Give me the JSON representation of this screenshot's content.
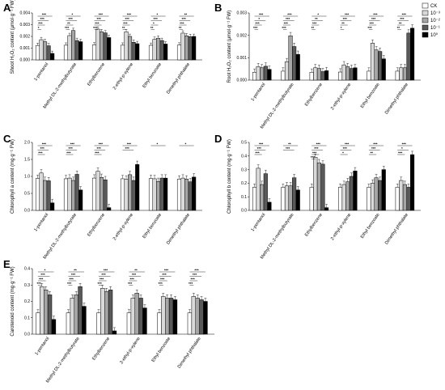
{
  "chart_data": [
    {
      "panel": "A",
      "type": "bar",
      "ylabel": "Shoot H₂O₂ content (μmol·g⁻¹ FW)",
      "ylim": [
        0,
        0.004
      ],
      "yticks": [
        "0.000",
        "0.001",
        "0.002",
        "0.003",
        "0.004"
      ],
      "categories": [
        "1-pentanol",
        "Methyl DL-2-methylbutyrate",
        "Ethylbenzene",
        "2-ethyl-p-xylene",
        "Ethyl benzoate",
        "Dimethyl phthalate"
      ],
      "series": [
        {
          "name": "CK",
          "values": [
            0.00123,
            0.00125,
            0.00128,
            0.00125,
            0.00124,
            0.00126
          ]
        },
        {
          "name": "10⁻³",
          "values": [
            0.00172,
            0.00207,
            0.00262,
            0.0024,
            0.00175,
            0.00228
          ]
        },
        {
          "name": "10⁻²",
          "values": [
            0.00155,
            0.0025,
            0.0024,
            0.002,
            0.00185,
            0.00205
          ]
        },
        {
          "name": "10⁻¹",
          "values": [
            0.0012,
            0.00165,
            0.0023,
            0.0015,
            0.00165,
            0.00198
          ]
        },
        {
          "name": "10⁰",
          "values": [
            0.00055,
            0.00155,
            0.0019,
            0.00138,
            0.00135,
            0.002
          ]
        }
      ],
      "significance": [
        [
          "***",
          "***",
          "***",
          "*"
        ],
        [
          "*",
          "***",
          "**",
          "***"
        ],
        [
          "***",
          "***",
          "***",
          "***"
        ],
        [
          "***",
          "***",
          "***",
          "**"
        ],
        [
          "*",
          "***",
          "*",
          "**"
        ],
        [
          "**",
          "***",
          "***",
          "**"
        ]
      ]
    },
    {
      "panel": "B",
      "type": "bar",
      "ylabel": "Root H₂O₂ content (μmol·g⁻¹ FW)",
      "ylim": [
        0,
        0.003
      ],
      "yticks": [
        "0.000",
        "0.001",
        "0.002",
        "0.003"
      ],
      "categories": [
        "1-pentanol",
        "Methyl DL-2-methylbutyrate",
        "Ethylbenzene",
        "2-ethyl-p-xylene",
        "Ethyl benzoate",
        "Dimethyl phthalate"
      ],
      "series": [
        {
          "name": "CK",
          "values": [
            0.00035,
            0.0004,
            0.00035,
            0.00036,
            0.0004,
            0.0004
          ]
        },
        {
          "name": "10⁻³",
          "values": [
            0.0006,
            0.00082,
            0.00055,
            0.00068,
            0.00165,
            0.00055
          ]
        },
        {
          "name": "10⁻²",
          "values": [
            0.00055,
            0.00198,
            0.00052,
            0.0006,
            0.00135,
            0.00055
          ]
        },
        {
          "name": "10⁻¹",
          "values": [
            0.00062,
            0.0015,
            0.00038,
            0.00052,
            0.00128,
            0.0021
          ]
        },
        {
          "name": "10⁰",
          "values": [
            0.00048,
            0.00115,
            0.00042,
            0.00055,
            0.00095,
            0.00232
          ]
        }
      ],
      "significance": [
        [
          "***",
          "*",
          "***",
          "***"
        ],
        [
          "***",
          "***",
          "***",
          "***"
        ],
        [
          "*",
          "**",
          "***",
          "**"
        ],
        [
          "***",
          "***",
          "**",
          "*"
        ],
        [
          "***",
          "***",
          "***",
          "***"
        ],
        [
          "***",
          "***",
          "**",
          "**"
        ]
      ]
    },
    {
      "panel": "C",
      "type": "bar",
      "ylabel": "Chlorophyll a content (mg·g⁻¹ FW)",
      "ylim": [
        0,
        2.0
      ],
      "yticks": [
        "0.0",
        "0.5",
        "1.0",
        "1.5",
        "2.0"
      ],
      "categories": [
        "1-pentanol",
        "Methyl DL-2-methylbutyrate",
        "Ethylbenzene",
        "2-ethyl-p-xylene",
        "Ethyl benzoate",
        "Dimethyl phthalate"
      ],
      "series": [
        {
          "name": "CK",
          "values": [
            0.94,
            0.93,
            0.95,
            0.93,
            0.94,
            0.92
          ]
        },
        {
          "name": "10⁻³",
          "values": [
            1.1,
            0.95,
            1.15,
            0.92,
            0.93,
            0.95
          ]
        },
        {
          "name": "10⁻²",
          "values": [
            0.88,
            0.88,
            0.97,
            1.05,
            0.85,
            0.92
          ]
        },
        {
          "name": "10⁻¹",
          "values": [
            0.87,
            1.06,
            0.9,
            0.88,
            0.95,
            0.84
          ]
        },
        {
          "name": "10⁰",
          "values": [
            0.22,
            0.6,
            0.08,
            1.35,
            0.95,
            0.98
          ]
        }
      ],
      "significance": [
        [
          "***",
          "***",
          "***"
        ],
        [
          "***",
          "***",
          "***"
        ],
        [
          "***",
          "***",
          "***"
        ],
        [
          "***",
          "***"
        ],
        [
          "*"
        ],
        [
          "*"
        ]
      ]
    },
    {
      "panel": "D",
      "type": "bar",
      "ylabel": "Chlorophyll b content (mg·g⁻¹ FW)",
      "ylim": [
        0,
        0.5
      ],
      "yticks": [
        "0.0",
        "0.1",
        "0.2",
        "0.3",
        "0.4",
        "0.5"
      ],
      "categories": [
        "1-pentanol",
        "Methyl DL-2-methylbutyrate",
        "Ethylbenzene",
        "2-ethyl-p-xylene",
        "Ethyl benzoate",
        "Dimethyl phthalate"
      ],
      "series": [
        {
          "name": "CK",
          "values": [
            0.17,
            0.17,
            0.17,
            0.17,
            0.17,
            0.17
          ]
        },
        {
          "name": "10⁻³",
          "values": [
            0.31,
            0.18,
            0.39,
            0.19,
            0.2,
            0.22
          ]
        },
        {
          "name": "10⁻²",
          "values": [
            0.19,
            0.18,
            0.35,
            0.21,
            0.24,
            0.19
          ]
        },
        {
          "name": "10⁻¹",
          "values": [
            0.27,
            0.24,
            0.34,
            0.25,
            0.22,
            0.17
          ]
        },
        {
          "name": "10⁰",
          "values": [
            0.06,
            0.15,
            0.02,
            0.29,
            0.3,
            0.41
          ]
        }
      ],
      "significance": [
        [
          "***",
          "***",
          "***"
        ],
        [
          "**",
          "***"
        ],
        [
          "***",
          "***",
          "***",
          "***"
        ],
        [
          "***",
          "***",
          "*"
        ],
        [
          "***",
          "***",
          "**"
        ],
        [
          "***",
          "*",
          "***"
        ]
      ]
    },
    {
      "panel": "E",
      "type": "bar",
      "ylabel": "Carotenoid content (mg·g⁻¹ FW)",
      "ylim": [
        0,
        0.4
      ],
      "yticks": [
        "0.0",
        "0.1",
        "0.2",
        "0.3",
        "0.4"
      ],
      "categories": [
        "1-pentanol",
        "Methyl DL-2-methylbutyrate",
        "Ethylbenzene",
        "2-ethyl-p-xylene",
        "Ethyl benzoate",
        "Dimethyl phthalate"
      ],
      "series": [
        {
          "name": "CK",
          "values": [
            0.13,
            0.13,
            0.13,
            0.13,
            0.13,
            0.13
          ]
        },
        {
          "name": "10⁻³",
          "values": [
            0.29,
            0.22,
            0.28,
            0.22,
            0.23,
            0.23
          ]
        },
        {
          "name": "10⁻²",
          "values": [
            0.27,
            0.24,
            0.26,
            0.25,
            0.22,
            0.22
          ]
        },
        {
          "name": "10⁻¹",
          "values": [
            0.24,
            0.29,
            0.27,
            0.22,
            0.22,
            0.21
          ]
        },
        {
          "name": "10⁰",
          "values": [
            0.09,
            0.17,
            0.02,
            0.16,
            0.21,
            0.2
          ]
        }
      ],
      "significance": [
        [
          "*",
          "***",
          "***",
          "***"
        ],
        [
          "**",
          "***",
          "***",
          "***"
        ],
        [
          "***",
          "***",
          "***",
          "***"
        ],
        [
          "**",
          "***",
          "***",
          "***"
        ],
        [
          "***",
          "***",
          "***",
          "***"
        ],
        [
          "***",
          "***",
          "***",
          "***"
        ]
      ]
    }
  ],
  "legend": {
    "placement": "top-right",
    "items": [
      {
        "label": "CK",
        "color": "#ffffff"
      },
      {
        "label": "10⁻³",
        "color": "#d9d9d9"
      },
      {
        "label": "10⁻²",
        "color": "#a6a6a6"
      },
      {
        "label": "10⁻¹",
        "color": "#595959"
      },
      {
        "label": "10⁰",
        "color": "#000000"
      }
    ]
  }
}
